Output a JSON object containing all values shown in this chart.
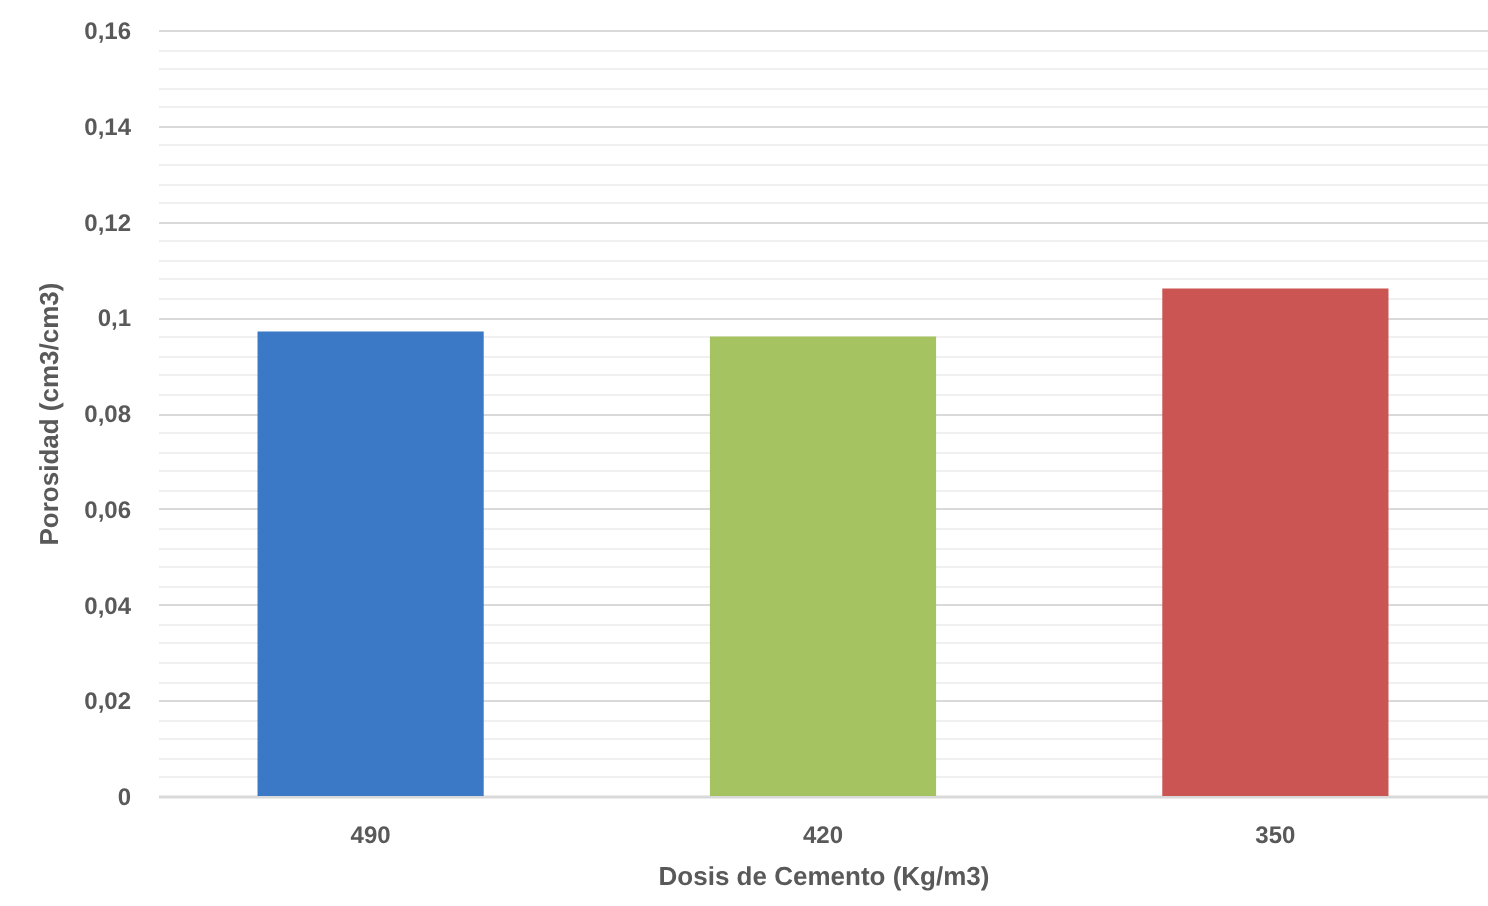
{
  "chart_data": {
    "type": "bar",
    "categories": [
      "490",
      "420",
      "350"
    ],
    "values": [
      0.097,
      0.096,
      0.106
    ],
    "colors": [
      "#3b78c6",
      "#a5c461",
      "#cb5553"
    ],
    "xlabel": "Dosis de Cemento (Kg/m3)",
    "ylabel": "Porosidad (cm3/cm3)",
    "ylim": [
      0,
      0.16
    ],
    "yticks": [
      0,
      {
        "value": 0.004,
        "label": null
      },
      {
        "value": 0.008,
        "label": null
      },
      {
        "value": 0.012,
        "label": null
      },
      {
        "value": 0.016,
        "label": null
      },
      {
        "value": 0.02,
        "label": "0,02"
      },
      {
        "value": 0.024,
        "label": null
      },
      {
        "value": 0.028,
        "label": null
      },
      {
        "value": 0.032,
        "label": null
      },
      {
        "value": 0.036,
        "label": null
      },
      {
        "value": 0.04,
        "label": "0,04"
      },
      {
        "value": 0.044,
        "label": null
      },
      {
        "value": 0.048,
        "label": null
      },
      {
        "value": 0.052,
        "label": null
      },
      {
        "value": 0.056,
        "label": null
      },
      {
        "value": 0.06,
        "label": "0,06"
      },
      {
        "value": 0.064,
        "label": null
      },
      {
        "value": 0.068,
        "label": null
      },
      {
        "value": 0.072,
        "label": null
      },
      {
        "value": 0.076,
        "label": null
      },
      {
        "value": 0.08,
        "label": "0,08"
      },
      {
        "value": 0.084,
        "label": null
      },
      {
        "value": 0.088,
        "label": null
      },
      {
        "value": 0.092,
        "label": null
      },
      {
        "value": 0.096,
        "label": null
      },
      {
        "value": 0.1,
        "label": "0,1"
      },
      {
        "value": 0.104,
        "label": null
      },
      {
        "value": 0.108,
        "label": null
      },
      {
        "value": 0.112,
        "label": null
      },
      {
        "value": 0.116,
        "label": null
      },
      {
        "value": 0.12,
        "label": "0,12"
      },
      {
        "value": 0.124,
        "label": null
      },
      {
        "value": 0.128,
        "label": null
      },
      {
        "value": 0.132,
        "label": null
      },
      {
        "value": 0.136,
        "label": null
      },
      {
        "value": 0.14,
        "label": "0,14"
      },
      {
        "value": 0.144,
        "label": null
      },
      {
        "value": 0.148,
        "label": null
      },
      {
        "value": 0.152,
        "label": null
      },
      {
        "value": 0.156,
        "label": null
      },
      {
        "value": 0.16,
        "label": "0,16"
      }
    ],
    "grid": "y"
  }
}
